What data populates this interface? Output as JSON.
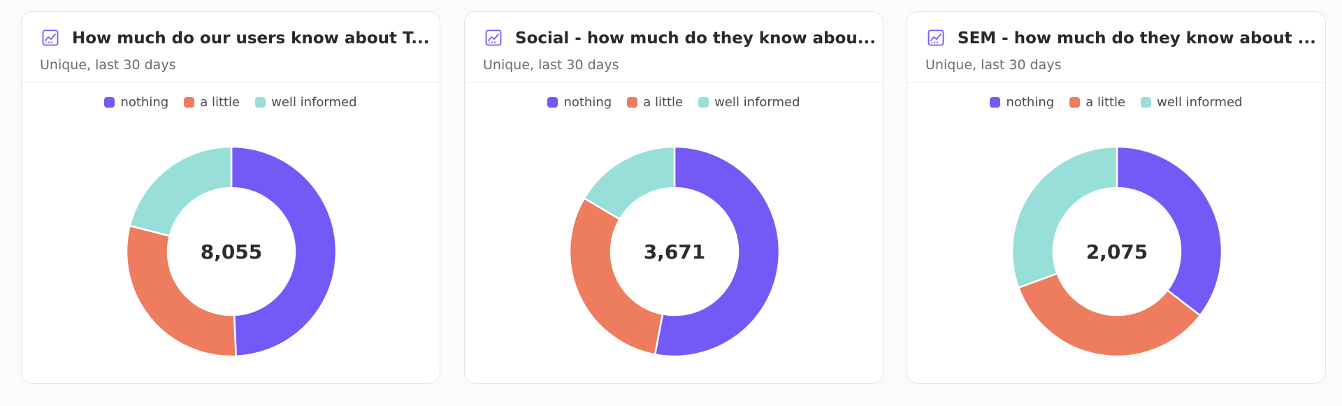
{
  "colors": {
    "nothing": "#7559f7",
    "a_little": "#ee7c5f",
    "well_informed": "#99dfd9"
  },
  "cards": [
    {
      "title": "How much do our users know about T...",
      "subtitle": "Unique, last 30 days",
      "total": "8,055",
      "legend": [
        "nothing",
        "a little",
        "well informed"
      ]
    },
    {
      "title": "Social - how much do they know abou...",
      "subtitle": "Unique, last 30 days",
      "total": "3,671",
      "legend": [
        "nothing",
        "a little",
        "well informed"
      ]
    },
    {
      "title": "SEM - how much do they know about ...",
      "subtitle": "Unique, last 30 days",
      "total": "2,075",
      "legend": [
        "nothing",
        "a little",
        "well informed"
      ]
    }
  ],
  "chart_data": [
    {
      "type": "pie",
      "title": "How much do our users know about T...",
      "categories": [
        "nothing",
        "a little",
        "well informed"
      ],
      "values": [
        3970,
        2390,
        1695
      ],
      "total": 8055
    },
    {
      "type": "pie",
      "title": "Social - how much do they know abou...",
      "categories": [
        "nothing",
        "a little",
        "well informed"
      ],
      "values": [
        1945,
        1120,
        606
      ],
      "total": 3671
    },
    {
      "type": "pie",
      "title": "SEM - how much do they know about ...",
      "categories": [
        "nothing",
        "a little",
        "well informed"
      ],
      "values": [
        735,
        705,
        635
      ],
      "total": 2075
    }
  ]
}
